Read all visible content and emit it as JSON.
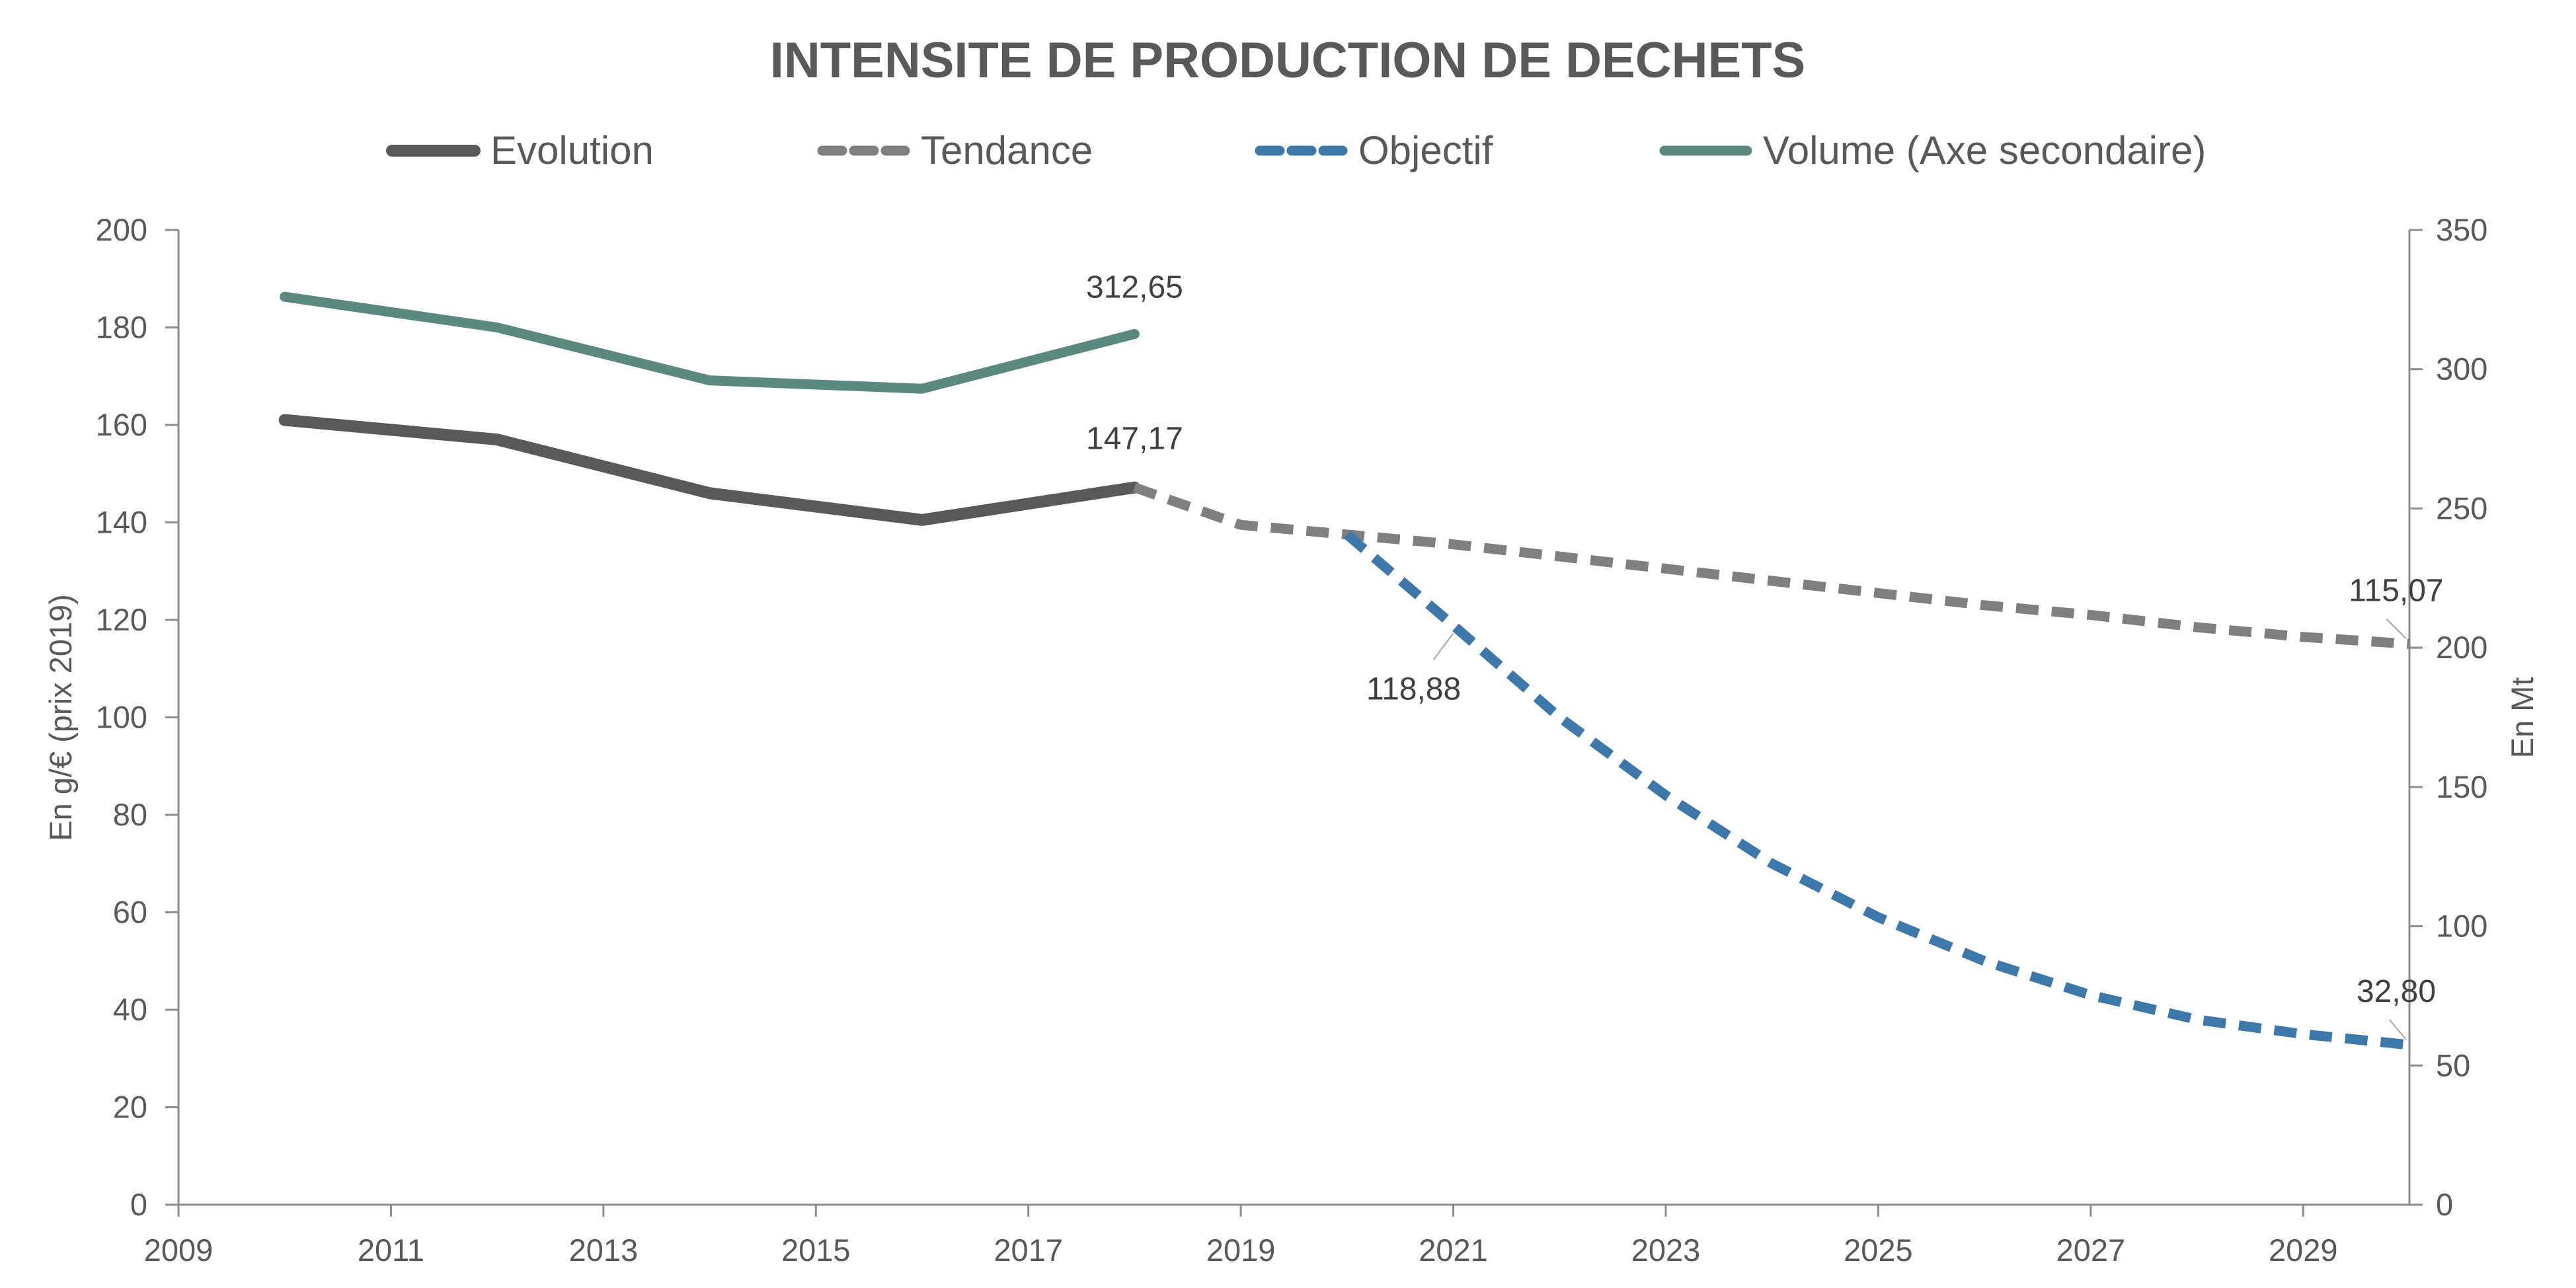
{
  "chart_data": {
    "type": "line",
    "title": "INTENSITE DE PRODUCTION DE DECHETS",
    "ylabel": "En g/€ (prix 2019)",
    "y2label": "En Mt",
    "xlim": [
      2009,
      2030
    ],
    "ylim": [
      0,
      200
    ],
    "y2lim": [
      0,
      350
    ],
    "x_ticks": [
      "2009",
      "2011",
      "2013",
      "2015",
      "2017",
      "2019",
      "2021",
      "2023",
      "2025",
      "2027",
      "2029"
    ],
    "y_ticks": [
      "0",
      "20",
      "40",
      "60",
      "80",
      "100",
      "120",
      "140",
      "160",
      "180",
      "200"
    ],
    "y2_ticks": [
      "0",
      "50",
      "100",
      "150",
      "200",
      "250",
      "300",
      "350"
    ],
    "grid": false,
    "legend_position": "top",
    "series": [
      {
        "name": "Evolution",
        "axis": "primary",
        "style": "solid",
        "color": "#595959",
        "x": [
          2010,
          2012,
          2014,
          2016,
          2018
        ],
        "y": [
          161,
          157,
          146,
          140.5,
          147.17
        ]
      },
      {
        "name": "Tendance",
        "axis": "primary",
        "style": "dashed",
        "color": "#7f7f7f",
        "x": [
          2018,
          2019,
          2020,
          2021,
          2022,
          2023,
          2024,
          2025,
          2026,
          2027,
          2028,
          2029,
          2030
        ],
        "y": [
          147.17,
          139.5,
          137.5,
          135.5,
          133,
          130.5,
          128,
          125.5,
          123,
          121,
          118.5,
          116.5,
          115.07
        ]
      },
      {
        "name": "Objectif",
        "axis": "primary",
        "style": "dashed",
        "color": "#3d78ab",
        "x": [
          2020,
          2021,
          2022,
          2023,
          2024,
          2025,
          2026,
          2027,
          2028,
          2029,
          2030
        ],
        "y": [
          137.5,
          118.88,
          100,
          84,
          70,
          59,
          50,
          43,
          38,
          35,
          32.8
        ]
      },
      {
        "name": "Volume (Axe secondaire)",
        "axis": "secondary",
        "style": "solid",
        "color": "#5a8a7e",
        "x": [
          2010,
          2012,
          2014,
          2016,
          2018
        ],
        "y": [
          326,
          315,
          296,
          293,
          312.65
        ]
      }
    ],
    "annotations": [
      {
        "text": "312,65",
        "series": "Volume (Axe secondaire)",
        "x": 2018,
        "y": 312.65
      },
      {
        "text": "147,17",
        "series": "Evolution",
        "x": 2018,
        "y": 147.17
      },
      {
        "text": "118,88",
        "series": "Objectif",
        "x": 2021,
        "y": 118.88
      },
      {
        "text": "115,07",
        "series": "Tendance",
        "x": 2030,
        "y": 115.07
      },
      {
        "text": "32,80",
        "series": "Objectif",
        "x": 2030,
        "y": 32.8
      }
    ]
  }
}
